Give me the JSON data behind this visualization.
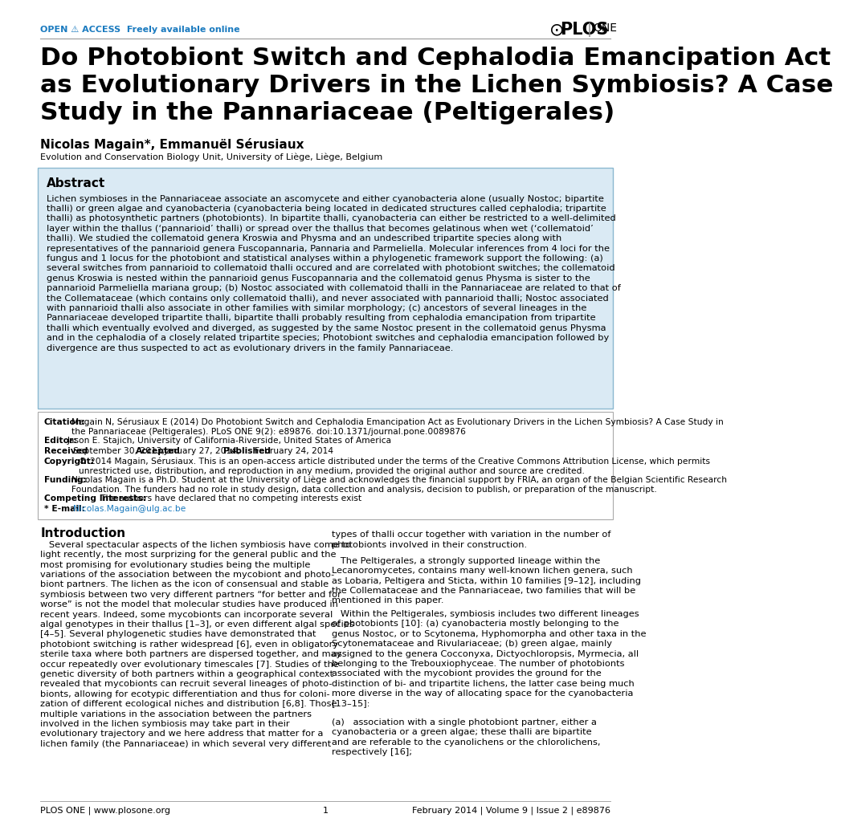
{
  "header_left": "OPEN ⚠ ACCESS  Freely available online",
  "title": "Do Photobiont Switch and Cephalodia Emancipation Act\nas Evolutionary Drivers in the Lichen Symbiosis? A Case\nStudy in the Pannariaceae (Peltigerales)",
  "authors": "Nicolas Magain*, Emmanuël Sérusiaux",
  "affiliation": "Evolution and Conservation Biology Unit, University of Liège, Liège, Belgium",
  "abstract_title": "Abstract",
  "abstract_text": "Lichen symbioses in the Pannariaceae associate an ascomycete and either cyanobacteria alone (usually Nostoc; bipartite\nthalli) or green algae and cyanobacteria (cyanobacteria being located in dedicated structures called cephalodia; tripartite\nthalli) as photosynthetic partners (photobionts). In bipartite thalli, cyanobacteria can either be restricted to a well-delimited\nlayer within the thallus (‘pannarioid’ thalli) or spread over the thallus that becomes gelatinous when wet (‘collematoid’\nthalli). We studied the collematoid genera Kroswia and Physma and an undescribed tripartite species along with\nrepresentatives of the pannarioid genera Fuscopannaria, Pannaria and Parmeliella. Molecular inferences from 4 loci for the\nfungus and 1 locus for the photobiont and statistical analyses within a phylogenetic framework support the following: (a)\nseveral switches from pannarioid to collematoid thalli occured and are correlated with photobiont switches; the collematoid\ngenus Kroswia is nested within the pannarioid genus Fuscopannaria and the collematoid genus Physma is sister to the\npannarioid Parmeliella mariana group; (b) Nostoc associated with collematoid thalli in the Pannariaceae are related to that of\nthe Collemataceae (which contains only collematoid thalli), and never associated with pannarioid thalli; Nostoc associated\nwith pannarioid thalli also associate in other families with similar morphology; (c) ancestors of several lineages in the\nPannariaceae developed tripartite thalli, bipartite thalli probably resulting from cephalodia emancipation from tripartite\nthalli which eventually evolved and diverged, as suggested by the same Nostoc present in the collematoid genus Physma\nand in the cephalodia of a closely related tripartite species; Photobiont switches and cephalodia emancipation followed by\ndivergence are thus suspected to act as evolutionary drivers in the family Pannariaceae.",
  "citation_label": "Citation:",
  "citation_text": "Magain N, Sérusiaux E (2014) Do Photobiont Switch and Cephalodia Emancipation Act as Evolutionary Drivers in the Lichen Symbiosis? A Case Study in\nthe Pannariaceae (Peltigerales). PLoS ONE 9(2): e89876. doi:10.1371/journal.pone.0089876",
  "editor_label": "Editor:",
  "editor_text": "Jason E. Stajich, University of California-Riverside, United States of America",
  "received_label": "Received",
  "received_text": "September 30, 2013;",
  "accepted_label": "Accepted",
  "accepted_text": "January 27, 2014;",
  "published_label": "Published",
  "published_text": "February 24, 2014",
  "copyright_label": "Copyright:",
  "copyright_text": "© 2014 Magain, Sérusiaux. This is an open-access article distributed under the terms of the Creative Commons Attribution License, which permits\nunrestricted use, distribution, and reproduction in any medium, provided the original author and source are credited.",
  "funding_label": "Funding:",
  "funding_text": "Nicolas Magain is a Ph.D. Student at the University of Liège and acknowledges the financial support by FRIA, an organ of the Belgian Scientific Research\nFoundation. The funders had no role in study design, data collection and analysis, decision to publish, or preparation of the manuscript.",
  "competing_label": "Competing Interests:",
  "competing_text": "The authors have declared that no competing interests exist",
  "email_label": "* E-mail:",
  "email_text": "Nicolas.Magain@ulg.ac.be",
  "section_intro": "Introduction",
  "intro_col1_para1": "   Several spectacular aspects of the lichen symbiosis have come to\nlight recently, the most surprizing for the general public and the\nmost promising for evolutionary studies being the multiple\nvariations of the association between the mycobiont and photo-\nbiont partners. The lichen as the icon of consensual and stable\nsymbiosis between two very different partners “for better and for\nworse” is not the model that molecular studies have produced in\nrecent years. Indeed, some mycobionts can incorporate several\nalgal genotypes in their thallus [1–3], or even different algal species\n[4–5]. Several phylogenetic studies have demonstrated that\nphotobiont switching is rather widespread [6], even in obligatory\nsterile taxa where both partners are dispersed together, and may\noccur repeatedly over evolutionary timescales [7]. Studies of the\ngenetic diversity of both partners within a geographical context\nrevealed that mycobionts can recruit several lineages of photo-\nbionts, allowing for ecotypic differentiation and thus for coloni-\nzation of different ecological niches and distribution [6,8]. Those\nmultiple variations in the association between the partners\ninvolved in the lichen symbiosis may take part in their\nevolutionary trajectory and we here address that matter for a\nlichen family (the Pannariaceae) in which several very different",
  "intro_col2_para1": "types of thalli occur together with variation in the number of\nphotobionts involved in their construction.",
  "intro_col2_para2": "   The Peltigerales, a strongly supported lineage within the\nLecanoromycetes, contains many well-known lichen genera, such\nas Lobaria, Peltigera and Sticta, within 10 families [9–12], including\nthe Collemataceae and the Pannariaceae, two families that will be\nmentioned in this paper.",
  "intro_col2_para3": "   Within the Peltigerales, symbiosis includes two different lineages\nof photobionts [10]: (a) cyanobacteria mostly belonging to the\ngenus Nostoc, or to Scytonema, Hyphomorpha and other taxa in the\nScytonemataceae and Rivulariaceae; (b) green algae, mainly\nassigned to the genera Cocconyxa, Dictyochloropsis, Myrmecia, all\nbelonging to the Trebouxiophyceae. The number of photobionts\nassociated with the mycobiont provides the ground for the\ndistinction of bi- and tripartite lichens, the latter case being much\nmore diverse in the way of allocating space for the cyanobacteria\n[13–15]:",
  "intro_col2_para4": "(a)   association with a single photobiont partner, either a\ncyanobacteria or a green algae; these thalli are bipartite\nand are referable to the cyanolichens or the chlorolichens,\nrespectively [16];",
  "footer_left": "PLOS ONE | www.plosone.org",
  "footer_center": "1",
  "footer_right": "February 2014 | Volume 9 | Issue 2 | e89876",
  "bg_color": "#ffffff",
  "abstract_bg": "#daeaf4",
  "abstract_border": "#8bb8d0",
  "header_color": "#1a7abf",
  "text_color": "#000000",
  "link_color": "#1a7abf"
}
